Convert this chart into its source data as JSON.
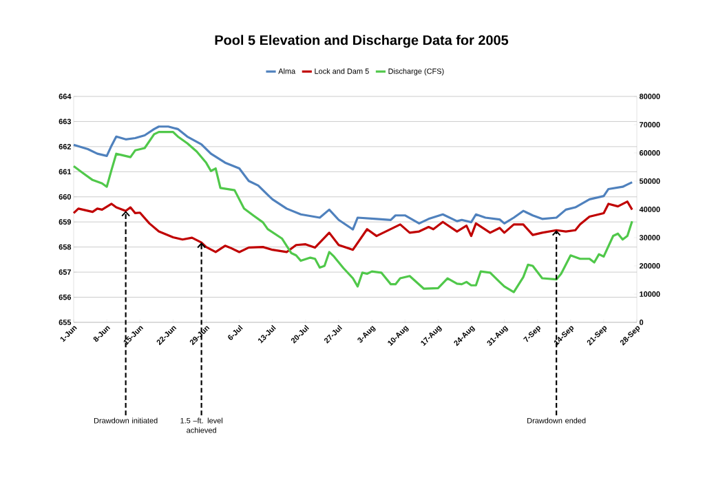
{
  "chart_data": {
    "type": "line",
    "title": "Pool 5 Elevation and Discharge Data for 2005",
    "xlim": [
      "2005-06-01",
      "2005-09-28"
    ],
    "xticks": [
      {
        "value": "2005-06-01",
        "label": "1-Jun"
      },
      {
        "value": "2005-06-08",
        "label": "8-Jun"
      },
      {
        "value": "2005-06-15",
        "label": "15-Jun"
      },
      {
        "value": "2005-06-22",
        "label": "22-Jun"
      },
      {
        "value": "2005-06-29",
        "label": "29-Jun"
      },
      {
        "value": "2005-07-06",
        "label": "6-Jul"
      },
      {
        "value": "2005-07-13",
        "label": "13-Jul"
      },
      {
        "value": "2005-07-20",
        "label": "20-Jul"
      },
      {
        "value": "2005-07-27",
        "label": "27-Jul"
      },
      {
        "value": "2005-08-03",
        "label": "3-Aug"
      },
      {
        "value": "2005-08-10",
        "label": "10-Aug"
      },
      {
        "value": "2005-08-17",
        "label": "17-Aug"
      },
      {
        "value": "2005-08-24",
        "label": "24-Aug"
      },
      {
        "value": "2005-08-31",
        "label": "31-Aug"
      },
      {
        "value": "2005-09-07",
        "label": "7-Sep"
      },
      {
        "value": "2005-09-14",
        "label": "14-Sep"
      },
      {
        "value": "2005-09-21",
        "label": "21-Sep"
      },
      {
        "value": "2005-09-28",
        "label": "28-Sep"
      }
    ],
    "ylim": [
      655,
      664
    ],
    "yticks": [
      655,
      656,
      657,
      658,
      659,
      660,
      661,
      662,
      663,
      664
    ],
    "y2lim": [
      0,
      80000
    ],
    "y2ticks": [
      0,
      10000,
      20000,
      30000,
      40000,
      50000,
      60000,
      70000,
      80000
    ],
    "grid": "y",
    "legend": "top",
    "series": [
      {
        "name": "Alma",
        "color": "#4f81bd",
        "x": [
          "2005-06-01",
          "2005-06-04",
          "2005-06-06",
          "2005-06-08",
          "2005-06-09",
          "2005-06-10",
          "2005-06-12",
          "2005-06-14",
          "2005-06-16",
          "2005-06-18",
          "2005-06-19",
          "2005-06-21",
          "2005-06-23",
          "2005-06-25",
          "2005-06-28",
          "2005-06-30",
          "2005-07-03",
          "2005-07-06",
          "2005-07-08",
          "2005-07-10",
          "2005-07-12",
          "2005-07-13",
          "2005-07-16",
          "2005-07-19",
          "2005-07-23",
          "2005-07-25",
          "2005-07-27",
          "2005-07-30",
          "2005-07-31",
          "2005-08-04",
          "2005-08-07",
          "2005-08-08",
          "2005-08-10",
          "2005-08-13",
          "2005-08-15",
          "2005-08-18",
          "2005-08-21",
          "2005-08-22",
          "2005-08-24",
          "2005-08-25",
          "2005-08-27",
          "2005-08-30",
          "2005-08-31",
          "2005-09-02",
          "2005-09-04",
          "2005-09-06",
          "2005-09-08",
          "2005-09-11",
          "2005-09-13",
          "2005-09-15",
          "2005-09-18",
          "2005-09-21",
          "2005-09-22",
          "2005-09-25",
          "2005-09-26",
          "2005-09-27"
        ],
        "values": [
          662.07,
          661.9,
          661.72,
          661.63,
          662.04,
          662.4,
          662.29,
          662.34,
          662.45,
          662.7,
          662.8,
          662.8,
          662.7,
          662.4,
          662.09,
          661.72,
          661.36,
          661.13,
          660.63,
          660.45,
          660.08,
          659.9,
          659.53,
          659.3,
          659.17,
          659.49,
          659.08,
          658.7,
          659.17,
          659.12,
          659.08,
          659.26,
          659.26,
          658.94,
          659.12,
          659.3,
          659.03,
          659.08,
          658.99,
          659.3,
          659.17,
          659.1,
          658.94,
          659.17,
          659.44,
          659.26,
          659.12,
          659.17,
          659.49,
          659.58,
          659.9,
          660.03,
          660.31,
          660.4,
          660.49,
          660.58
        ]
      },
      {
        "name": "Lock and Dam 5",
        "color": "#c00000",
        "x": [
          "2005-06-01",
          "2005-06-02",
          "2005-06-05",
          "2005-06-06",
          "2005-06-07",
          "2005-06-09",
          "2005-06-10",
          "2005-06-12",
          "2005-06-13",
          "2005-06-14",
          "2005-06-15",
          "2005-06-17",
          "2005-06-19",
          "2005-06-22",
          "2005-06-24",
          "2005-06-26",
          "2005-06-28",
          "2005-06-29",
          "2005-07-01",
          "2005-07-03",
          "2005-07-04",
          "2005-07-06",
          "2005-07-08",
          "2005-07-11",
          "2005-07-13",
          "2005-07-16",
          "2005-07-18",
          "2005-07-20",
          "2005-07-22",
          "2005-07-25",
          "2005-07-27",
          "2005-07-30",
          "2005-08-02",
          "2005-08-04",
          "2005-08-09",
          "2005-08-11",
          "2005-08-13",
          "2005-08-15",
          "2005-08-16",
          "2005-08-18",
          "2005-08-21",
          "2005-08-23",
          "2005-08-24",
          "2005-08-25",
          "2005-08-28",
          "2005-08-30",
          "2005-08-31",
          "2005-09-02",
          "2005-09-04",
          "2005-09-06",
          "2005-09-08",
          "2005-09-11",
          "2005-09-13",
          "2005-09-15",
          "2005-09-16",
          "2005-09-18",
          "2005-09-21",
          "2005-09-22",
          "2005-09-24",
          "2005-09-26",
          "2005-09-27"
        ],
        "values": [
          659.35,
          659.53,
          659.4,
          659.53,
          659.49,
          659.72,
          659.58,
          659.44,
          659.58,
          659.35,
          659.37,
          658.94,
          658.62,
          658.39,
          658.3,
          658.37,
          658.18,
          658.0,
          657.8,
          658.05,
          657.98,
          657.8,
          657.98,
          658.0,
          657.89,
          657.8,
          658.08,
          658.11,
          657.98,
          658.57,
          658.08,
          657.89,
          658.71,
          658.44,
          658.9,
          658.57,
          658.62,
          658.8,
          658.71,
          659.0,
          658.62,
          658.85,
          658.44,
          658.94,
          658.57,
          658.76,
          658.57,
          658.9,
          658.9,
          658.48,
          658.57,
          658.67,
          658.62,
          658.67,
          658.9,
          659.21,
          659.35,
          659.72,
          659.62,
          659.81,
          659.49
        ]
      },
      {
        "name": "Discharge (CFS)",
        "color": "#50c84a",
        "axis": "y2",
        "x": [
          "2005-06-01",
          "2005-06-03",
          "2005-06-05",
          "2005-06-07",
          "2005-06-08",
          "2005-06-09",
          "2005-06-10",
          "2005-06-11",
          "2005-06-13",
          "2005-06-14",
          "2005-06-16",
          "2005-06-18",
          "2005-06-19",
          "2005-06-22",
          "2005-06-23",
          "2005-06-25",
          "2005-06-27",
          "2005-06-29",
          "2005-06-30",
          "2005-07-01",
          "2005-07-02",
          "2005-07-05",
          "2005-07-07",
          "2005-07-09",
          "2005-07-11",
          "2005-07-12",
          "2005-07-15",
          "2005-07-17",
          "2005-07-18",
          "2005-07-19",
          "2005-07-21",
          "2005-07-22",
          "2005-07-23",
          "2005-07-24",
          "2005-07-25",
          "2005-07-26",
          "2005-07-28",
          "2005-07-30",
          "2005-07-31",
          "2005-08-01",
          "2005-08-02",
          "2005-08-03",
          "2005-08-05",
          "2005-08-07",
          "2005-08-08",
          "2005-08-09",
          "2005-08-11",
          "2005-08-14",
          "2005-08-17",
          "2005-08-19",
          "2005-08-21",
          "2005-08-22",
          "2005-08-23",
          "2005-08-24",
          "2005-08-25",
          "2005-08-26",
          "2005-08-28",
          "2005-08-30",
          "2005-08-31",
          "2005-09-02",
          "2005-09-04",
          "2005-09-05",
          "2005-09-06",
          "2005-09-08",
          "2005-09-11",
          "2005-09-12",
          "2005-09-14",
          "2005-09-16",
          "2005-09-18",
          "2005-09-19",
          "2005-09-20",
          "2005-09-21",
          "2005-09-23",
          "2005-09-24",
          "2005-09-25",
          "2005-09-26",
          "2005-09-27"
        ],
        "values": [
          55300,
          52800,
          50400,
          49200,
          48000,
          54000,
          59700,
          59300,
          58500,
          60900,
          61700,
          66600,
          67400,
          67400,
          65800,
          63400,
          60500,
          56500,
          53600,
          54500,
          47600,
          46800,
          40300,
          37800,
          35400,
          33000,
          29700,
          24500,
          23700,
          21800,
          22900,
          22500,
          19400,
          20000,
          24900,
          23300,
          19200,
          15600,
          12700,
          17600,
          17200,
          18000,
          17600,
          13500,
          13500,
          15600,
          16400,
          11900,
          12100,
          15600,
          13700,
          13500,
          14300,
          13100,
          13100,
          18000,
          17600,
          14300,
          12700,
          10700,
          16000,
          20400,
          20000,
          15600,
          15200,
          17200,
          23700,
          22500,
          22500,
          21200,
          24100,
          23300,
          30600,
          31400,
          29300,
          30600,
          35800
        ]
      }
    ],
    "annotations": [
      {
        "text": "Drawdown initiated",
        "x": "2005-06-12",
        "y": 659.44
      },
      {
        "text": "1.5 –ft. level achieved",
        "x": "2005-06-28",
        "y": 658.18
      },
      {
        "text": "Drawdown ended",
        "x": "2005-09-11",
        "y": 658.67
      }
    ]
  }
}
